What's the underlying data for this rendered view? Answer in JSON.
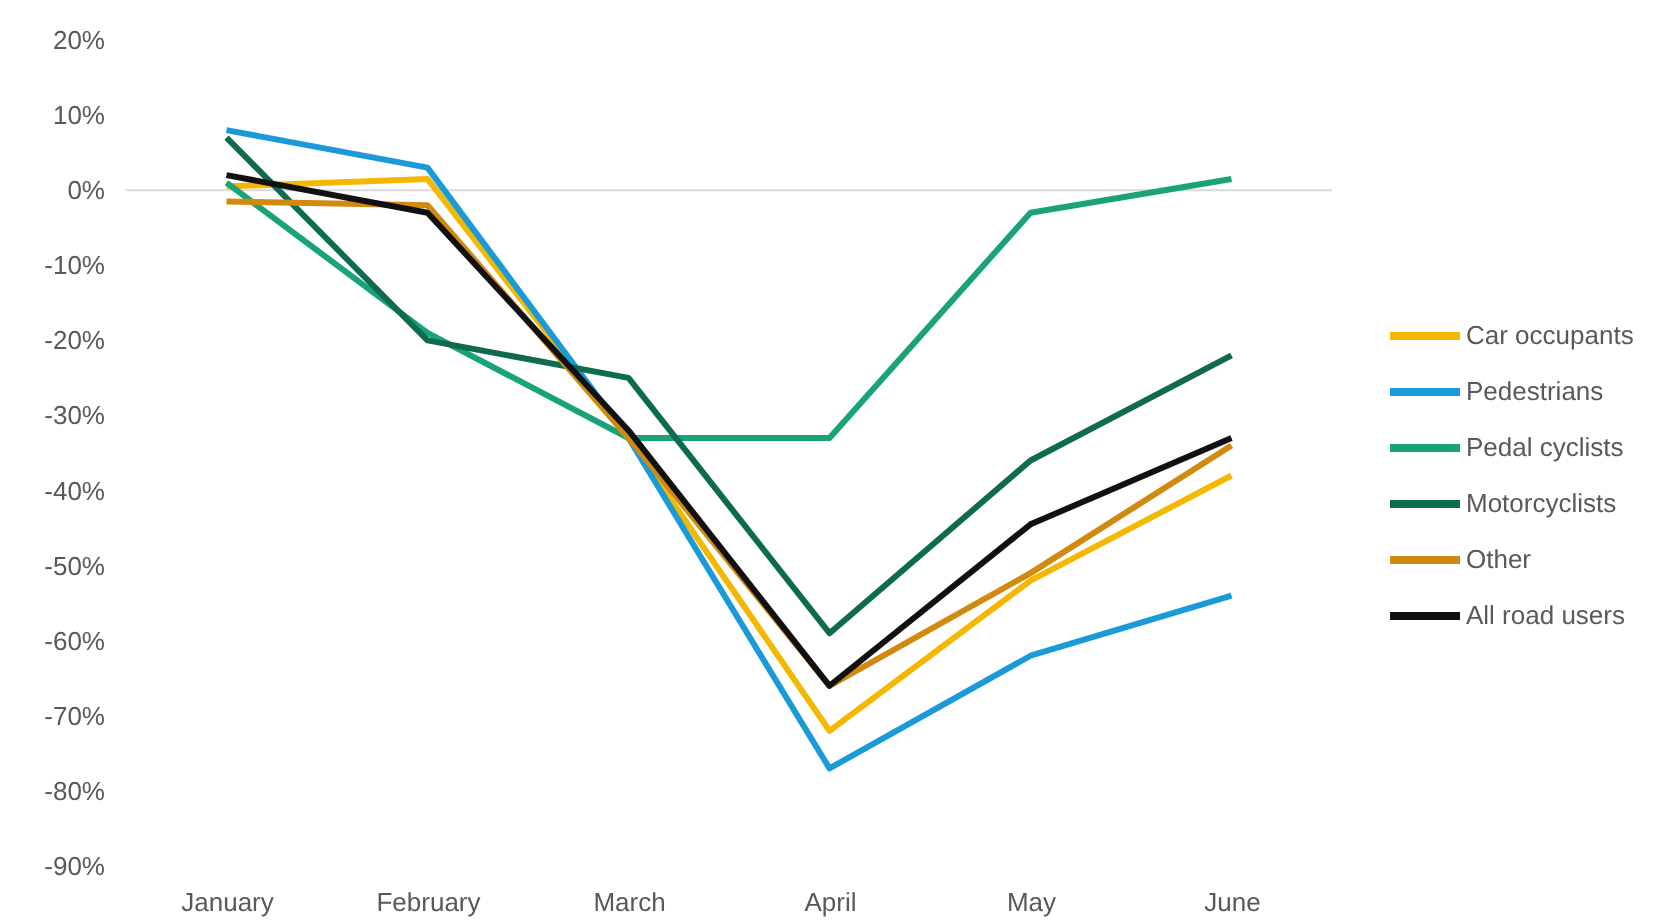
{
  "chart_data": {
    "type": "line",
    "categories": [
      "January",
      "February",
      "March",
      "April",
      "May",
      "June"
    ],
    "series": [
      {
        "name": "Car occupants",
        "color": "#f5b800",
        "values": [
          0.5,
          1.5,
          -33,
          -72,
          -52,
          -38
        ]
      },
      {
        "name": "Pedestrians",
        "color": "#1a9ad6",
        "values": [
          8,
          3,
          -33,
          -77,
          -62,
          -54
        ]
      },
      {
        "name": "Pedal cyclists",
        "color": "#1aa37a",
        "values": [
          1,
          -19,
          -33,
          -33,
          -3,
          1.5
        ]
      },
      {
        "name": "Motorcyclists",
        "color": "#0e6b4f",
        "values": [
          7,
          -20,
          -25,
          -59,
          -36,
          -22
        ]
      },
      {
        "name": "Other",
        "color": "#d08a10",
        "values": [
          -1.5,
          -2,
          -33,
          -66,
          -51,
          -34
        ]
      },
      {
        "name": "All road users",
        "color": "#111111",
        "values": [
          2,
          -3,
          -32,
          -66,
          -44.5,
          -33
        ]
      }
    ],
    "ylim": [
      -90,
      20
    ],
    "yticks": [
      {
        "value": -90,
        "label": "-90%"
      },
      {
        "value": -80,
        "label": "-80%"
      },
      {
        "value": -70,
        "label": "-70%"
      },
      {
        "value": -60,
        "label": "-60%"
      },
      {
        "value": -50,
        "label": "-50%"
      },
      {
        "value": -40,
        "label": "-40%"
      },
      {
        "value": -30,
        "label": "-30%"
      },
      {
        "value": -20,
        "label": "-20%"
      },
      {
        "value": -10,
        "label": "-10%"
      },
      {
        "value": 0,
        "label": "0%"
      },
      {
        "value": 10,
        "label": "10%"
      },
      {
        "value": 20,
        "label": "20%"
      }
    ],
    "ref_lines": [
      {
        "axis": "y",
        "value": 0,
        "color": "#d9d9d9"
      }
    ],
    "legend": "right"
  }
}
